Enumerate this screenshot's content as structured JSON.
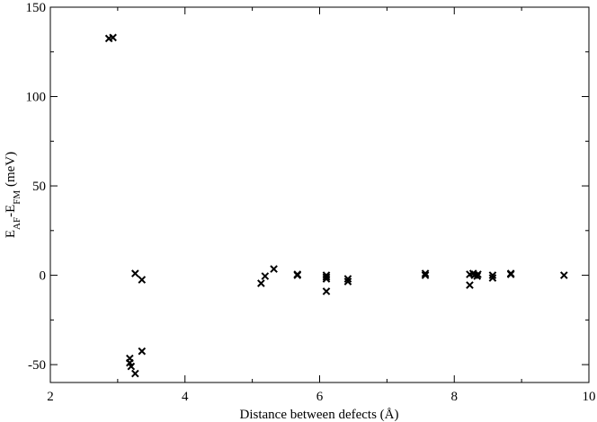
{
  "chart_data": {
    "type": "scatter",
    "title": "",
    "xlabel": "Distance between defects  (Å)",
    "ylabel": {
      "prefix": "E",
      "sub1": "AF",
      "mid": "-E",
      "sub2": "FM",
      "suffix": " (meV)"
    },
    "xlim": [
      2,
      10
    ],
    "ylim": [
      -60,
      150
    ],
    "xticks": [
      2,
      4,
      6,
      8,
      10
    ],
    "yticks": [
      -50,
      0,
      50,
      100,
      150
    ],
    "xtick_labels": [
      "2",
      "4",
      "6",
      "8",
      "10"
    ],
    "ytick_labels": [
      "-50",
      "0",
      "50",
      "100",
      "150"
    ],
    "grid": false,
    "legend": "none",
    "marker": "x",
    "points": [
      {
        "x": 2.87,
        "y": 132.5
      },
      {
        "x": 2.93,
        "y": 133.0
      },
      {
        "x": 3.18,
        "y": -46.5
      },
      {
        "x": 3.18,
        "y": -49.0
      },
      {
        "x": 3.2,
        "y": -51.0
      },
      {
        "x": 3.26,
        "y": -55.0
      },
      {
        "x": 3.26,
        "y": 1.0
      },
      {
        "x": 3.36,
        "y": -2.5
      },
      {
        "x": 3.36,
        "y": -42.5
      },
      {
        "x": 5.13,
        "y": -4.5
      },
      {
        "x": 5.19,
        "y": -0.5
      },
      {
        "x": 5.32,
        "y": 3.5
      },
      {
        "x": 5.67,
        "y": 0.0
      },
      {
        "x": 5.67,
        "y": 0.5
      },
      {
        "x": 6.1,
        "y": -9.0
      },
      {
        "x": 6.1,
        "y": -1.0
      },
      {
        "x": 6.1,
        "y": -2.0
      },
      {
        "x": 6.1,
        "y": 0.0
      },
      {
        "x": 6.42,
        "y": -3.5
      },
      {
        "x": 6.42,
        "y": -2.0
      },
      {
        "x": 7.57,
        "y": 0.0
      },
      {
        "x": 7.57,
        "y": 1.0
      },
      {
        "x": 8.23,
        "y": -5.5
      },
      {
        "x": 8.23,
        "y": 0.5
      },
      {
        "x": 8.28,
        "y": 1.0
      },
      {
        "x": 8.3,
        "y": 0.0
      },
      {
        "x": 8.34,
        "y": -0.5
      },
      {
        "x": 8.35,
        "y": 0.5
      },
      {
        "x": 8.57,
        "y": 0.0
      },
      {
        "x": 8.57,
        "y": -1.5
      },
      {
        "x": 8.84,
        "y": 0.5
      },
      {
        "x": 8.84,
        "y": 1.0
      },
      {
        "x": 9.63,
        "y": 0.0
      }
    ]
  }
}
